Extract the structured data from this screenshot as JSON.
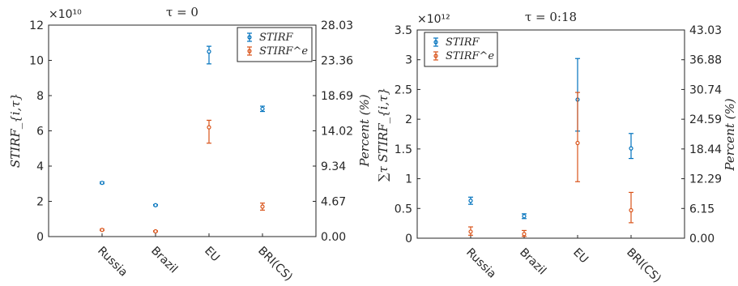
{
  "chart_data": [
    {
      "type": "scatter",
      "subtype": "errorbar",
      "title": "τ = 0",
      "ylabel": "STIRF_{i,τ}",
      "y2label": "Percent (%)",
      "exponent": "×10¹⁰",
      "categories": [
        "Russia",
        "Brazil",
        "EU",
        "BRI(CS)"
      ],
      "xlim": [
        0,
        5
      ],
      "ylim": [
        0,
        12
      ],
      "yticks": [
        "0",
        "2",
        "4",
        "6",
        "8",
        "10",
        "12"
      ],
      "y2ticks": [
        "0.00",
        "4.67",
        "9.34",
        "14.02",
        "18.69",
        "23.36",
        "28.03"
      ],
      "legend_position": "top-right",
      "series": [
        {
          "name": "STIRF",
          "color": "#0072BD",
          "values": [
            3.05,
            1.78,
            10.5,
            7.25
          ],
          "lower": [
            3.0,
            1.75,
            9.8,
            7.1
          ],
          "upper": [
            3.1,
            1.82,
            10.8,
            7.4
          ]
        },
        {
          "name": "STIRF^e",
          "color": "#D95319",
          "values": [
            0.38,
            0.3,
            6.2,
            1.7
          ],
          "lower": [
            0.34,
            0.27,
            5.3,
            1.5
          ],
          "upper": [
            0.42,
            0.33,
            6.6,
            1.9
          ]
        }
      ]
    },
    {
      "type": "scatter",
      "subtype": "errorbar",
      "title": "τ = 0:18",
      "ylabel": "∑τ STIRF_{i,τ}",
      "y2label": "Percent (%)",
      "exponent": "×10¹²",
      "categories": [
        "Russia",
        "Brazil",
        "EU",
        "BRI(CS)"
      ],
      "xlim": [
        0,
        5
      ],
      "ylim": [
        0,
        3.5
      ],
      "yticks": [
        "0",
        "0.5",
        "1",
        "1.5",
        "2",
        "2.5",
        "3",
        "3.5"
      ],
      "y2ticks": [
        "0.00",
        "6.15",
        "12.29",
        "18.44",
        "24.59",
        "30.74",
        "36.88",
        "43.03"
      ],
      "legend_position": "top-left",
      "series": [
        {
          "name": "STIRF",
          "color": "#0072BD",
          "values": [
            0.63,
            0.37,
            2.33,
            1.51
          ],
          "lower": [
            0.57,
            0.33,
            1.8,
            1.34
          ],
          "upper": [
            0.69,
            0.41,
            3.02,
            1.76
          ]
        },
        {
          "name": "STIRF^e",
          "color": "#D95319",
          "values": [
            0.11,
            0.07,
            1.6,
            0.47
          ],
          "lower": [
            0.05,
            0.03,
            0.95,
            0.26
          ],
          "upper": [
            0.19,
            0.13,
            2.45,
            0.77
          ]
        }
      ]
    }
  ]
}
